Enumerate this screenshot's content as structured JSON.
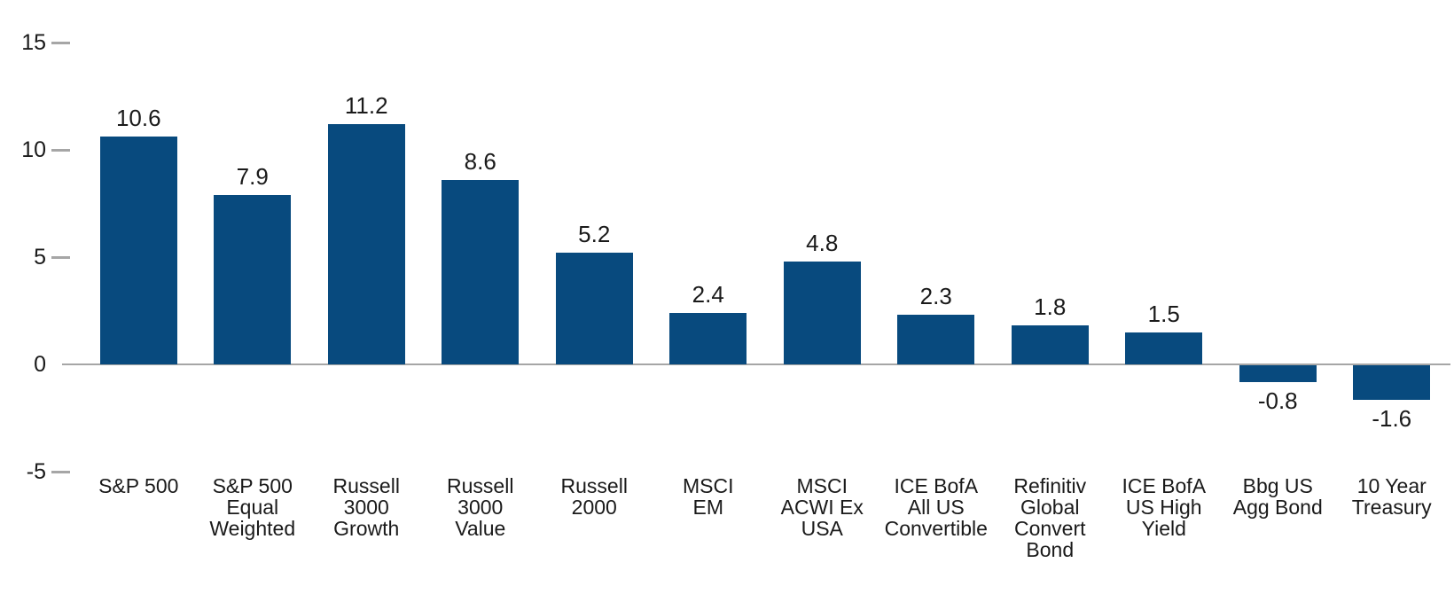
{
  "chart_data": {
    "type": "bar",
    "title": "",
    "xlabel": "",
    "ylabel": "",
    "categories": [
      "S&P 500",
      "S&P 500 Equal Weighted",
      "Russell 3000 Growth",
      "Russell 3000 Value",
      "Russell 2000",
      "MSCI EM",
      "MSCI ACWI Ex USA",
      "ICE BofA All US Convertible",
      "Refinitiv Global Convert Bond",
      "ICE BofA US High Yield",
      "Bbg US Agg Bond",
      "10 Year Treasury"
    ],
    "category_label_lines": [
      [
        "S&P 500"
      ],
      [
        "S&P 500",
        "Equal",
        "Weighted"
      ],
      [
        "Russell",
        "3000",
        "Growth"
      ],
      [
        "Russell",
        "3000",
        "Value"
      ],
      [
        "Russell",
        "2000"
      ],
      [
        "MSCI",
        "EM"
      ],
      [
        "MSCI",
        "ACWI Ex",
        "USA"
      ],
      [
        "ICE BofA",
        "All US",
        "Convertible"
      ],
      [
        "Refinitiv",
        "Global",
        "Convert",
        "Bond"
      ],
      [
        "ICE BofA",
        "US High",
        "Yield"
      ],
      [
        "Bbg US",
        "Agg Bond"
      ],
      [
        "10 Year",
        "Treasury"
      ]
    ],
    "values": [
      10.6,
      7.9,
      11.2,
      8.6,
      5.2,
      2.4,
      4.8,
      2.3,
      1.8,
      1.5,
      -0.8,
      -1.6
    ],
    "data_labels": [
      "10.6",
      "7.9",
      "11.2",
      "8.6",
      "5.2",
      "2.4",
      "4.8",
      "2.3",
      "1.8",
      "1.5",
      "-0.8",
      "-1.6"
    ],
    "y_ticks": [
      15,
      10,
      5,
      0,
      -5
    ],
    "ylim": [
      -5,
      15
    ],
    "grid": false,
    "legend": false,
    "bar_color": "#084a7e",
    "axis_color": "#a6a6a6",
    "text_color": "#1a1a1a"
  }
}
